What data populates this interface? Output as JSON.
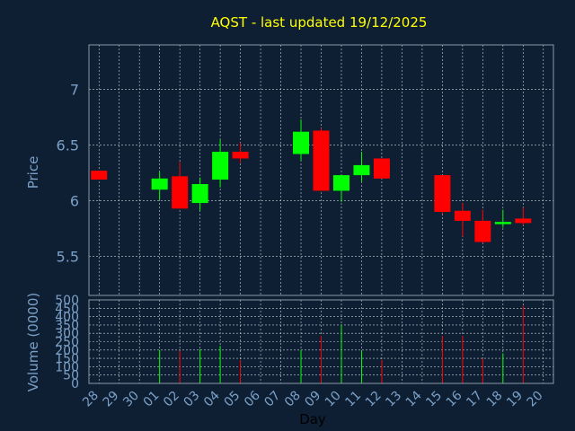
{
  "chart_data": {
    "type": "candlestick",
    "title": "AQST - last updated 19/12/2025",
    "xlabel": "Day",
    "ylabel": "Price",
    "volume_ylabel": "Volume (0000)",
    "grid": true,
    "price_ylim": [
      5.15,
      7.4
    ],
    "price_ticks": [
      5.5,
      6,
      6.5,
      7
    ],
    "volume_ylim": [
      0,
      500
    ],
    "volume_ticks": [
      0,
      50,
      100,
      150,
      200,
      250,
      300,
      350,
      400,
      450,
      500
    ],
    "categories": [
      "28",
      "29",
      "30",
      "01",
      "02",
      "03",
      "04",
      "05",
      "06",
      "07",
      "08",
      "09",
      "10",
      "11",
      "12",
      "13",
      "14",
      "15",
      "16",
      "17",
      "18",
      "19",
      "20"
    ],
    "colors": {
      "up": "#00ff00",
      "down": "#ff0000",
      "title": "#ffff00",
      "axis_text": "#7aa0c8",
      "frame": "#8899aa",
      "grid": "#c8d0d8",
      "background": "#0f1f33"
    },
    "candles": [
      {
        "day": "28",
        "open": 6.27,
        "close": 6.19,
        "high": 6.27,
        "low": 6.19,
        "volume": 0
      },
      {
        "day": "01",
        "open": 6.1,
        "close": 6.2,
        "high": 6.26,
        "low": 6.01,
        "volume": 200
      },
      {
        "day": "02",
        "open": 6.22,
        "close": 5.93,
        "high": 6.35,
        "low": 5.93,
        "volume": 195
      },
      {
        "day": "03",
        "open": 5.98,
        "close": 6.15,
        "high": 6.21,
        "low": 5.91,
        "volume": 205
      },
      {
        "day": "04",
        "open": 6.19,
        "close": 6.44,
        "high": 6.55,
        "low": 6.12,
        "volume": 225
      },
      {
        "day": "05",
        "open": 6.44,
        "close": 6.38,
        "high": 6.52,
        "low": 6.34,
        "volume": 140
      },
      {
        "day": "08",
        "open": 6.42,
        "close": 6.62,
        "high": 6.73,
        "low": 6.36,
        "volume": 200
      },
      {
        "day": "09",
        "open": 6.63,
        "close": 6.09,
        "high": 6.65,
        "low": 6.09,
        "volume": 285
      },
      {
        "day": "10",
        "open": 6.09,
        "close": 6.23,
        "high": 6.23,
        "low": 5.99,
        "volume": 350
      },
      {
        "day": "11",
        "open": 6.23,
        "close": 6.32,
        "high": 6.44,
        "low": 6.17,
        "volume": 195
      },
      {
        "day": "12",
        "open": 6.38,
        "close": 6.2,
        "high": 6.38,
        "low": 6.2,
        "volume": 140
      },
      {
        "day": "15",
        "open": 6.23,
        "close": 5.9,
        "high": 6.23,
        "low": 5.88,
        "volume": 285
      },
      {
        "day": "16",
        "open": 5.91,
        "close": 5.82,
        "high": 5.98,
        "low": 5.68,
        "volume": 285
      },
      {
        "day": "17",
        "open": 5.82,
        "close": 5.63,
        "high": 5.92,
        "low": 5.62,
        "volume": 150
      },
      {
        "day": "18",
        "open": 5.79,
        "close": 5.81,
        "high": 5.92,
        "low": 5.76,
        "volume": 180
      },
      {
        "day": "19",
        "open": 5.84,
        "close": 5.8,
        "high": 5.94,
        "low": 5.78,
        "volume": 465
      }
    ]
  }
}
